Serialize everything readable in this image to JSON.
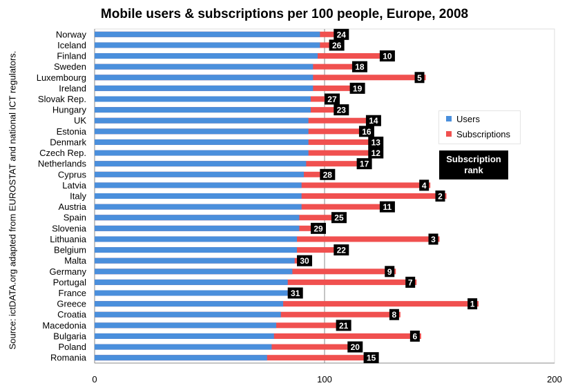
{
  "chart_data": {
    "type": "bar",
    "orientation": "horizontal",
    "title": "Mobile users & subscriptions per 100 people, Europe, 2008",
    "ylabel": "Source: ictDATA.org adapted from EUROSTAT and national ICT regulators.",
    "xlabel": "",
    "xlim": [
      0,
      200
    ],
    "xticks": [
      "0",
      "100",
      "200"
    ],
    "legend": {
      "placement": "right",
      "entries": [
        "Users",
        "Subscriptions"
      ]
    },
    "annotation": "Subscription rank",
    "colors": {
      "Users": "#4a8fdc",
      "Subscriptions": "#f0504f"
    },
    "categories": [
      "Norway",
      "Iceland",
      "Finland",
      "Sweden",
      "Luxembourg",
      "Ireland",
      "Slovak Rep.",
      "Hungary",
      "UK",
      "Estonia",
      "Denmark",
      "Czech Rep.",
      "Netherlands",
      "Cyprus",
      "Latvia",
      "Italy",
      "Austria",
      "Spain",
      "Slovenia",
      "Lithuania",
      "Belgium",
      "Malta",
      "Germany",
      "Portugal",
      "France",
      "Greece",
      "Croatia",
      "Macedonia",
      "Bulgaria",
      "Poland",
      "Romania"
    ],
    "series": [
      {
        "name": "Users",
        "values": [
          98,
          98,
          97,
          95,
          95,
          95,
          94,
          94,
          93,
          93,
          93,
          93,
          92,
          91,
          90,
          90,
          90,
          89,
          89,
          88,
          88,
          87,
          86,
          84,
          84,
          82,
          81,
          79,
          78,
          77,
          75
        ]
      },
      {
        "name": "Subscriptions",
        "values": [
          110,
          108,
          130,
          118,
          144,
          117,
          106,
          110,
          124,
          121,
          125,
          125,
          120,
          104,
          146,
          153,
          130,
          109,
          100,
          150,
          110,
          94,
          131,
          140,
          90,
          167,
          133,
          111,
          142,
          116,
          123
        ]
      }
    ],
    "ranks": [
      "24",
      "26",
      "10",
      "18",
      "5",
      "19",
      "27",
      "23",
      "14",
      "16",
      "13",
      "12",
      "17",
      "28",
      "4",
      "2",
      "11",
      "25",
      "29",
      "3",
      "22",
      "30",
      "9",
      "7",
      "31",
      "1",
      "8",
      "21",
      "6",
      "20",
      "15"
    ]
  }
}
